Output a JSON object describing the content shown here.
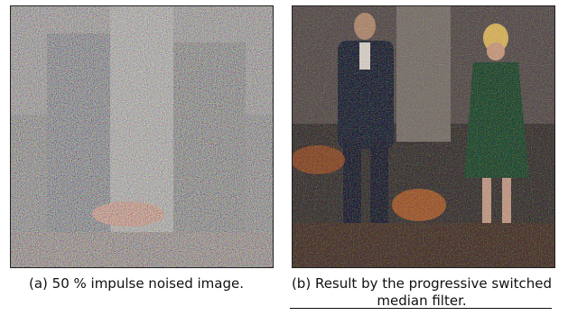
{
  "figures": [
    {
      "icon": "noisy-photo-image",
      "caption": "(a) 50 % impulse noised image."
    },
    {
      "icon": "filtered-photo-image",
      "caption": "(b) Result by the progressive switched median filter."
    }
  ]
}
